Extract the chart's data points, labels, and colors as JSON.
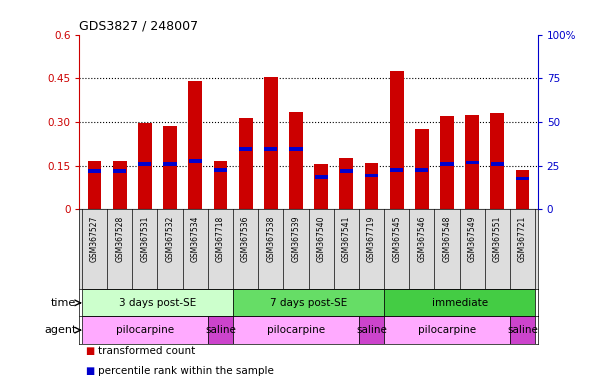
{
  "title": "GDS3827 / 248007",
  "samples": [
    "GSM367527",
    "GSM367528",
    "GSM367531",
    "GSM367532",
    "GSM367534",
    "GSM367718",
    "GSM367536",
    "GSM367538",
    "GSM367539",
    "GSM367540",
    "GSM367541",
    "GSM367719",
    "GSM367545",
    "GSM367546",
    "GSM367548",
    "GSM367549",
    "GSM367551",
    "GSM367721"
  ],
  "transformed_count": [
    0.165,
    0.165,
    0.295,
    0.285,
    0.44,
    0.165,
    0.315,
    0.455,
    0.335,
    0.155,
    0.175,
    0.16,
    0.475,
    0.275,
    0.32,
    0.325,
    0.33,
    0.135
  ],
  "percentile_rank": [
    0.13,
    0.13,
    0.155,
    0.155,
    0.165,
    0.135,
    0.205,
    0.205,
    0.205,
    0.11,
    0.13,
    0.115,
    0.135,
    0.135,
    0.155,
    0.16,
    0.155,
    0.105
  ],
  "bar_color": "#cc0000",
  "percentile_color": "#0000cc",
  "ylim_left": [
    0,
    0.6
  ],
  "ylim_right": [
    0,
    100
  ],
  "yticks_left": [
    0,
    0.15,
    0.3,
    0.45,
    0.6
  ],
  "yticks_left_labels": [
    "0",
    "0.15",
    "0.30",
    "0.45",
    "0.6"
  ],
  "yticks_right": [
    0,
    25,
    50,
    75,
    100
  ],
  "yticks_right_labels": [
    "0",
    "25",
    "50",
    "75",
    "100%"
  ],
  "hlines": [
    0.15,
    0.3,
    0.45
  ],
  "time_groups": [
    {
      "label": "3 days post-SE",
      "start": 0,
      "end": 6,
      "color": "#ccffcc"
    },
    {
      "label": "7 days post-SE",
      "start": 6,
      "end": 12,
      "color": "#66dd66"
    },
    {
      "label": "immediate",
      "start": 12,
      "end": 18,
      "color": "#44cc44"
    }
  ],
  "agent_groups": [
    {
      "label": "pilocarpine",
      "start": 0,
      "end": 5,
      "color": "#ffaaff"
    },
    {
      "label": "saline",
      "start": 5,
      "end": 6,
      "color": "#cc44cc"
    },
    {
      "label": "pilocarpine",
      "start": 6,
      "end": 11,
      "color": "#ffaaff"
    },
    {
      "label": "saline",
      "start": 11,
      "end": 12,
      "color": "#cc44cc"
    },
    {
      "label": "pilocarpine",
      "start": 12,
      "end": 17,
      "color": "#ffaaff"
    },
    {
      "label": "saline",
      "start": 17,
      "end": 18,
      "color": "#cc44cc"
    }
  ],
  "legend_items": [
    {
      "label": "transformed count",
      "color": "#cc0000"
    },
    {
      "label": "percentile rank within the sample",
      "color": "#0000cc"
    }
  ],
  "bar_width": 0.55,
  "background_color": "#ffffff",
  "left_axis_color": "#cc0000",
  "right_axis_color": "#0000cc",
  "label_bg_color": "#dddddd",
  "time_label": "time",
  "agent_label": "agent"
}
